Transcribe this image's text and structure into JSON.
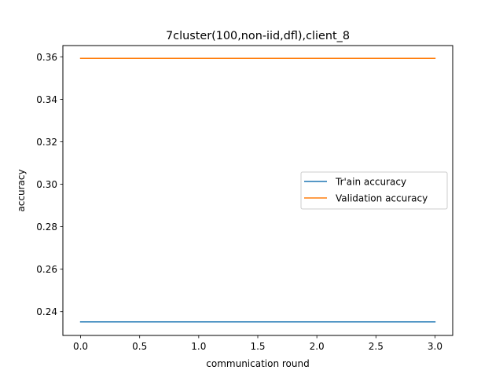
{
  "chart_data": {
    "type": "line",
    "title": "7cluster(100,non-iid,dfl),client_8",
    "xlabel": "communication round",
    "ylabel": "accuracy",
    "x": [
      0,
      1,
      2,
      3
    ],
    "xlim": [
      -0.15,
      3.15
    ],
    "ylim": [
      0.2288,
      0.3653
    ],
    "xticks": [
      0.0,
      0.5,
      1.0,
      1.5,
      2.0,
      2.5,
      3.0
    ],
    "xtick_labels": [
      "0.0",
      "0.5",
      "1.0",
      "1.5",
      "2.0",
      "2.5",
      "3.0"
    ],
    "yticks": [
      0.24,
      0.26,
      0.28,
      0.3,
      0.32,
      0.34,
      0.36
    ],
    "ytick_labels": [
      "0.24",
      "0.26",
      "0.28",
      "0.30",
      "0.32",
      "0.34",
      "0.36"
    ],
    "grid": false,
    "legend_position": "center-right",
    "series": [
      {
        "name": "Tr'ain accuracy",
        "color": "#1f77b4",
        "values": [
          0.2352,
          0.2352,
          0.2352,
          0.2352
        ]
      },
      {
        "name": "Validation accuracy",
        "color": "#ff7f0e",
        "values": [
          0.3593,
          0.3593,
          0.3593,
          0.3593
        ]
      }
    ]
  }
}
